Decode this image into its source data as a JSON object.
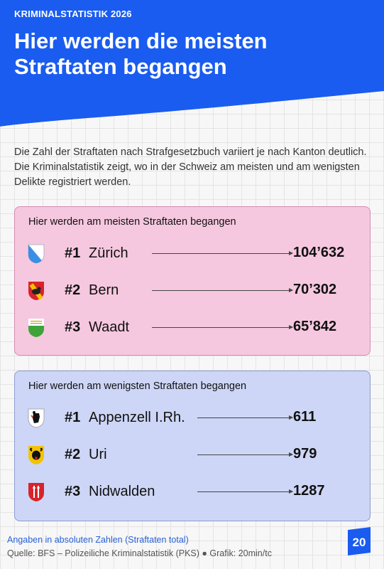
{
  "header": {
    "kicker": "KRIMINALSTATISTIK 2026",
    "title_line1": "Hier werden die meisten",
    "title_line2": "Straftaten begangen",
    "color": "#1a5cf0"
  },
  "intro": "Die Zahl der Straftaten nach Strafgesetzbuch variiert je nach Kanton deutlich. Die Kriminalstatistik zeigt, wo in der Schweiz am meisten und am wenigsten Delikte registriert werden.",
  "most": {
    "title": "Hier werden am meisten Straftaten begangen",
    "color": "#f6c8df",
    "rows": [
      {
        "rank": "#1",
        "canton": "Zürich",
        "value": "104’632",
        "icon": "zurich-crest-icon"
      },
      {
        "rank": "#2",
        "canton": "Bern",
        "value": "70’302",
        "icon": "bern-crest-icon"
      },
      {
        "rank": "#3",
        "canton": "Waadt",
        "value": "65’842",
        "icon": "vaud-crest-icon"
      }
    ]
  },
  "least": {
    "title": "Hier werden am wenigsten Straftaten begangen",
    "color": "#cdd6f6",
    "rows": [
      {
        "rank": "#1",
        "canton": "Appenzell I.Rh.",
        "value": "611",
        "icon": "appenzell-crest-icon"
      },
      {
        "rank": "#2",
        "canton": "Uri",
        "value": "979",
        "icon": "uri-crest-icon"
      },
      {
        "rank": "#3",
        "canton": "Nidwalden",
        "value": "1287",
        "icon": "nidwalden-crest-icon"
      }
    ]
  },
  "footer": {
    "note": "Angaben in absoluten Zahlen (Straftaten total)",
    "source": "Quelle: BFS – Polizeiliche Kriminalstatistik (PKS) ● Grafik: 20min/tc",
    "logo": "20",
    "logo_icon": "20-minuten-logo-icon"
  }
}
